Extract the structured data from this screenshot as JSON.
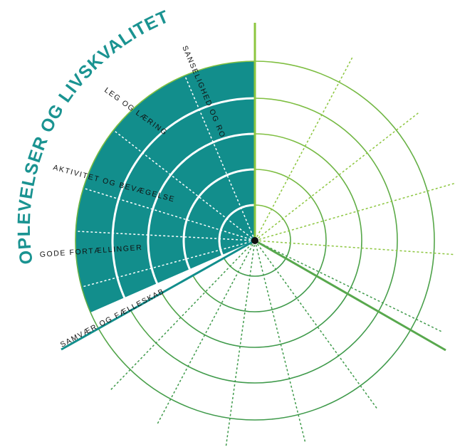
{
  "title": "OPLEVELSER OG LIVSKVALITET",
  "section_labels": [
    {
      "text": "SANSELIGHED OG RO"
    },
    {
      "text": "LEG OG LÆRING"
    },
    {
      "text": "AKTIVITET OG BEVÆGELSE"
    },
    {
      "text": "GODE FORTÆLLINGER"
    },
    {
      "text": "SAMVÆR OG FÆLLESKAB"
    }
  ],
  "colors": {
    "highlight": "#128e8c",
    "title": "#1a9391",
    "ring_light": "#8cc63f",
    "ring_mid": "#62b14c",
    "ring_dark": "#3f9a4b",
    "axis_top": "#8cc63f",
    "axis_right": "#58a84d",
    "axis_left": "#128e8c",
    "center_dot": "#111111"
  }
}
